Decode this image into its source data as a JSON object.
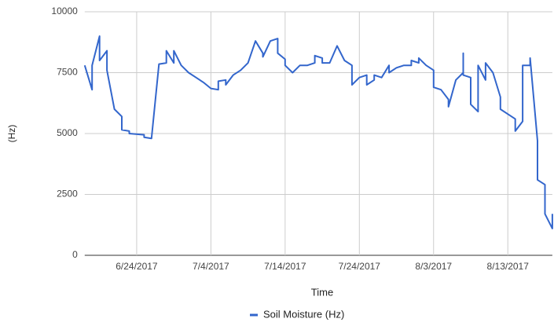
{
  "chart_data": {
    "type": "line",
    "x_label": "Time",
    "y_label": "(Hz)",
    "x": [
      "2017-06-17",
      "2017-06-18",
      "2017-06-18",
      "2017-06-19",
      "2017-06-19",
      "2017-06-20",
      "2017-06-20",
      "2017-06-21",
      "2017-06-22",
      "2017-06-22",
      "2017-06-23",
      "2017-06-23",
      "2017-06-25",
      "2017-06-25",
      "2017-06-26",
      "2017-06-27",
      "2017-06-28",
      "2017-06-28",
      "2017-06-29",
      "2017-06-29",
      "2017-06-30",
      "2017-07-01",
      "2017-07-02",
      "2017-07-03",
      "2017-07-04",
      "2017-07-05",
      "2017-07-05",
      "2017-07-06",
      "2017-07-06",
      "2017-07-07",
      "2017-07-08",
      "2017-07-09",
      "2017-07-10",
      "2017-07-11",
      "2017-07-11",
      "2017-07-12",
      "2017-07-13",
      "2017-07-13",
      "2017-07-14",
      "2017-07-14",
      "2017-07-15",
      "2017-07-16",
      "2017-07-17",
      "2017-07-18",
      "2017-07-18",
      "2017-07-19",
      "2017-07-19",
      "2017-07-20",
      "2017-07-21",
      "2017-07-22",
      "2017-07-23",
      "2017-07-23",
      "2017-07-24",
      "2017-07-25",
      "2017-07-25",
      "2017-07-26",
      "2017-07-26",
      "2017-07-27",
      "2017-07-28",
      "2017-07-28",
      "2017-07-29",
      "2017-07-30",
      "2017-07-31",
      "2017-07-31",
      "2017-08-01",
      "2017-08-01",
      "2017-08-02",
      "2017-08-03",
      "2017-08-03",
      "2017-08-04",
      "2017-08-05",
      "2017-08-05",
      "2017-08-06",
      "2017-08-07",
      "2017-08-07",
      "2017-08-07",
      "2017-08-08",
      "2017-08-08",
      "2017-08-09",
      "2017-08-09",
      "2017-08-10",
      "2017-08-10",
      "2017-08-11",
      "2017-08-12",
      "2017-08-12",
      "2017-08-13",
      "2017-08-14",
      "2017-08-14",
      "2017-08-15",
      "2017-08-15",
      "2017-08-16",
      "2017-08-16",
      "2017-08-17",
      "2017-08-17",
      "2017-08-18",
      "2017-08-18",
      "2017-08-19",
      "2017-08-19"
    ],
    "series": [
      {
        "name": "Soil Moisture (Hz)",
        "color": "#3366cc",
        "values": [
          7800,
          6800,
          7800,
          9000,
          8000,
          8400,
          7600,
          6000,
          5700,
          5150,
          5100,
          5000,
          4950,
          4850,
          4800,
          7850,
          7900,
          8400,
          7900,
          8400,
          7800,
          7500,
          7300,
          7100,
          6850,
          6800,
          7150,
          7200,
          7000,
          7400,
          7600,
          7900,
          8800,
          8300,
          8150,
          8800,
          8900,
          8300,
          8050,
          7800,
          7500,
          7800,
          7800,
          7900,
          8200,
          8100,
          7900,
          7900,
          8600,
          8000,
          7800,
          7000,
          7300,
          7400,
          7000,
          7200,
          7400,
          7300,
          7800,
          7500,
          7700,
          7800,
          7800,
          8000,
          7900,
          8100,
          7800,
          7600,
          6900,
          6800,
          6400,
          6100,
          7200,
          7500,
          8300,
          7400,
          7300,
          6200,
          5900,
          7800,
          7200,
          7900,
          7500,
          6500,
          6000,
          5800,
          5600,
          5100,
          5500,
          7800,
          7800,
          8100,
          4700,
          3100,
          2900,
          1700,
          1100,
          1700
        ]
      }
    ],
    "xlim": [
      "2017-06-17",
      "2017-08-19"
    ],
    "xticks": [
      {
        "value": "2017-06-24",
        "label": "6/24/2017"
      },
      {
        "value": "2017-07-04",
        "label": "7/4/2017"
      },
      {
        "value": "2017-07-14",
        "label": "7/14/2017"
      },
      {
        "value": "2017-07-24",
        "label": "7/24/2017"
      },
      {
        "value": "2017-08-03",
        "label": "8/3/2017"
      },
      {
        "value": "2017-08-13",
        "label": "8/13/2017"
      }
    ],
    "ylim": [
      0,
      10000
    ],
    "yticks": [
      0,
      2500,
      5000,
      7500,
      10000
    ],
    "grid": true,
    "legend": "bottom"
  }
}
